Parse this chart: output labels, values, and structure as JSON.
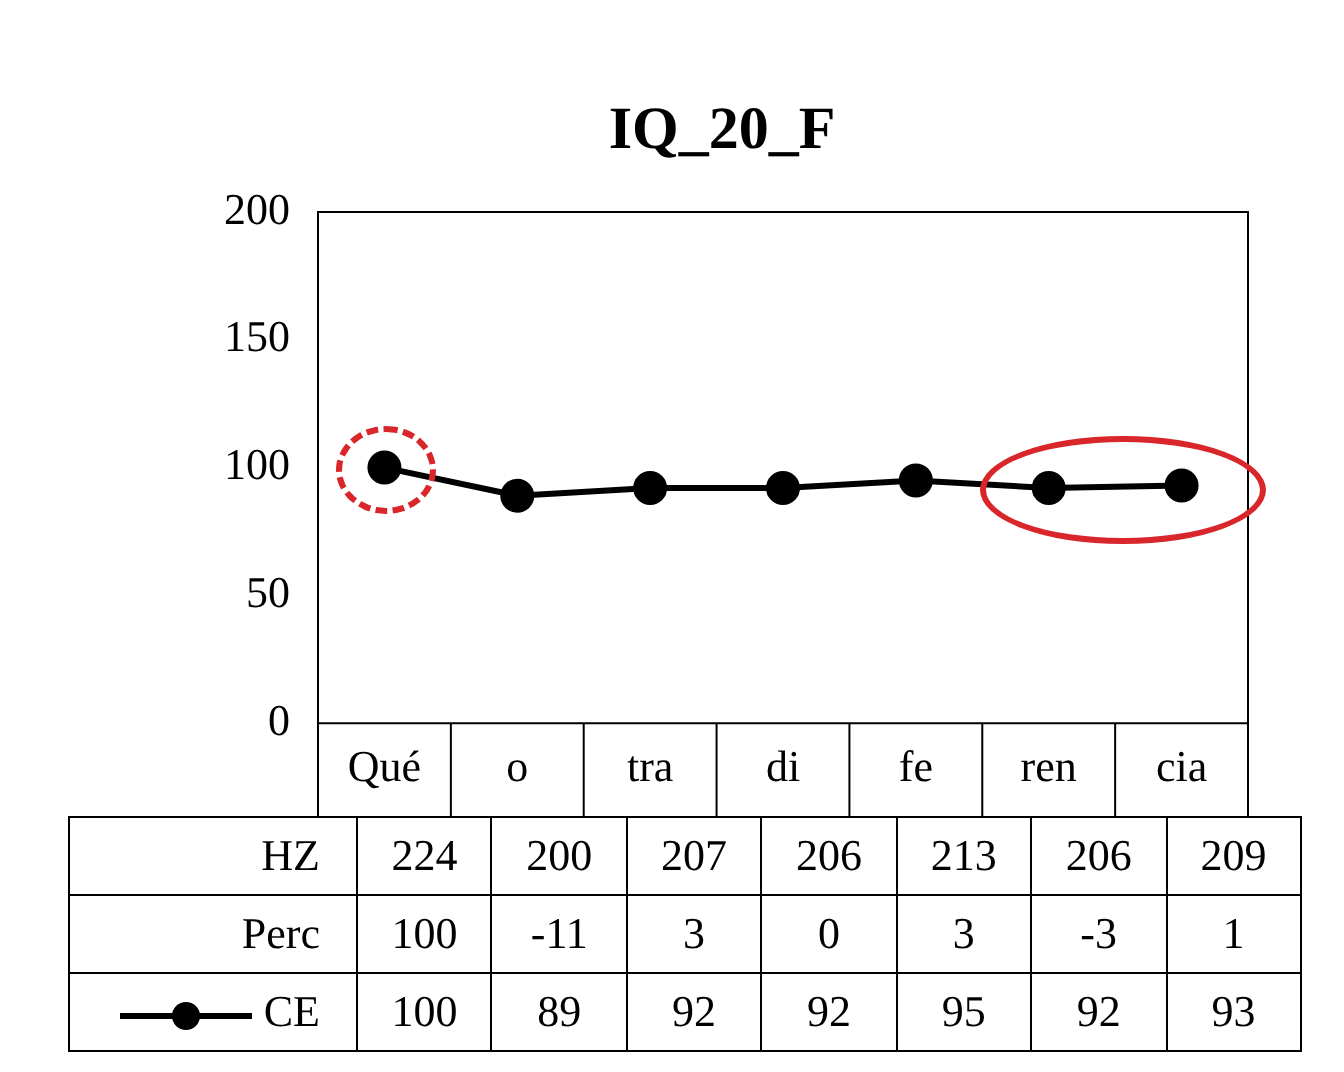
{
  "chart_data": {
    "type": "line",
    "title": "IQ_20_F",
    "categories": [
      "Qué",
      "o",
      "tra",
      "di",
      "fe",
      "ren",
      "cia"
    ],
    "series": [
      {
        "name": "HZ",
        "type": "other",
        "values": [
          null,
          null,
          null,
          null,
          null,
          null,
          null
        ],
        "value_labels": [
          "224",
          "200",
          "207",
          "206",
          "213",
          "206",
          "209"
        ]
      },
      {
        "name": "Perc",
        "type": "other",
        "values": [
          null,
          null,
          null,
          null,
          null,
          null,
          null
        ],
        "value_labels": [
          "100",
          "-11",
          "3",
          "0",
          "3",
          "-3",
          "1"
        ]
      },
      {
        "name": "CE",
        "color": "#000000",
        "values": [
          100,
          89,
          92,
          92,
          95,
          92,
          93
        ]
      }
    ],
    "ylim": [
      0,
      200
    ],
    "yticks": [
      0,
      50,
      100,
      150,
      200
    ],
    "grid": false,
    "legend": "bottom",
    "marker": "circle",
    "line_style": "solid",
    "data_labels": true
  }
}
